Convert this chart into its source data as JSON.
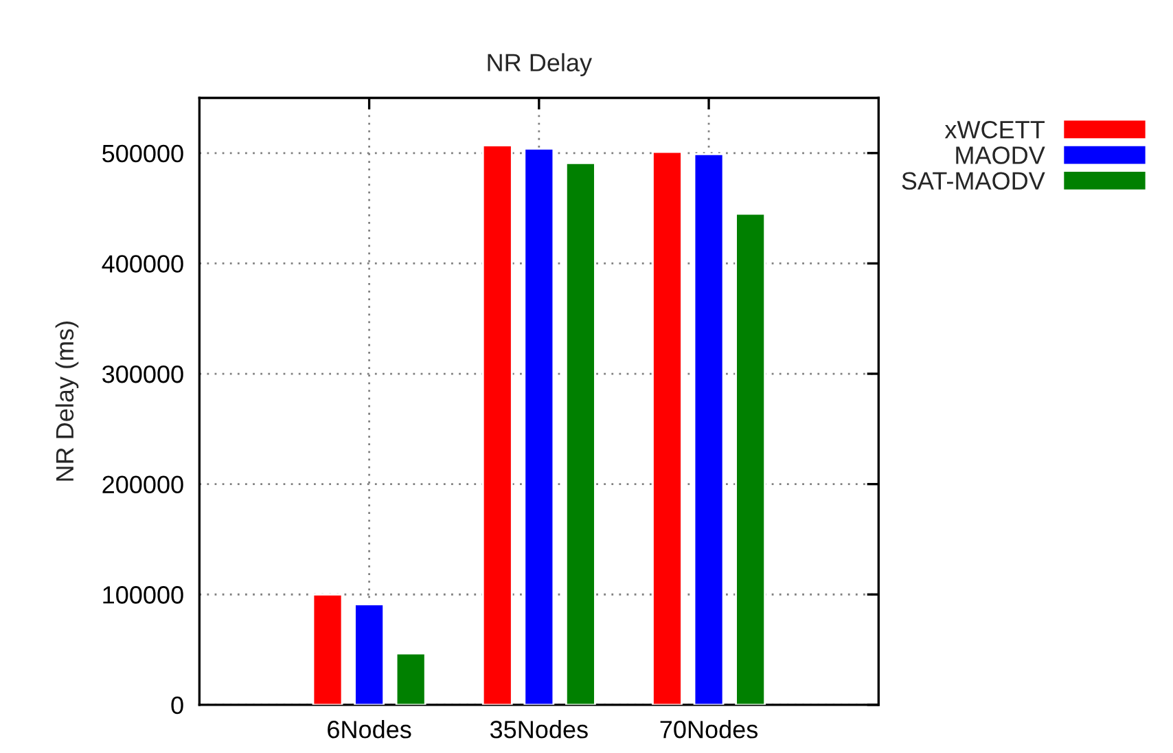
{
  "chart_data": {
    "type": "bar",
    "title": "NR Delay",
    "ylabel": "NR Delay (ms)",
    "categories": [
      "6Nodes",
      "35Nodes",
      "70Nodes"
    ],
    "series": [
      {
        "name": "xWCETT",
        "color": "#ff0000",
        "values": [
          100000,
          507000,
          501000
        ]
      },
      {
        "name": "MAODV",
        "color": "#0000ff",
        "values": [
          91000,
          504000,
          499000
        ]
      },
      {
        "name": "SAT-MAODV",
        "color": "#008000",
        "values": [
          46500,
          491000,
          445000
        ]
      }
    ],
    "ylim": [
      0,
      550000
    ],
    "yticks": [
      0,
      100000,
      200000,
      300000,
      400000,
      500000
    ],
    "grid": true,
    "legend": "top right"
  }
}
